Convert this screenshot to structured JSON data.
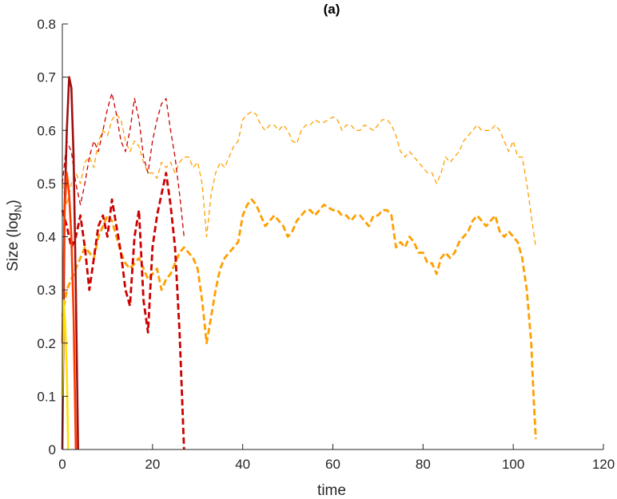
{
  "chart_data": {
    "type": "line",
    "title": "(a)",
    "xlabel": "time",
    "ylabel_main": "Size (log",
    "ylabel_sub": "N",
    "ylabel_close": ")",
    "xlim": [
      0,
      120
    ],
    "ylim": [
      0,
      0.8
    ],
    "xticks": [
      0,
      20,
      40,
      60,
      80,
      100,
      120
    ],
    "yticks": [
      0,
      0.1,
      0.2,
      0.3,
      0.4,
      0.5,
      0.6,
      0.7,
      0.8
    ],
    "xtick_labels": [
      "0",
      "20",
      "40",
      "60",
      "80",
      "100",
      "120"
    ],
    "ytick_labels": [
      "0",
      "0.1",
      "0.2",
      "0.3",
      "0.4",
      "0.5",
      "0.6",
      "0.7",
      "0.8"
    ],
    "grid": false,
    "legend": "none",
    "series": [
      {
        "color": "#ff9f00",
        "style": "dashed-thin",
        "x": [
          0,
          1,
          2,
          3,
          4,
          5,
          6,
          7,
          8,
          9,
          10,
          11,
          12,
          13,
          14,
          15,
          16,
          17,
          18,
          19,
          20,
          21,
          22,
          23,
          24,
          25,
          26,
          27,
          28,
          29,
          30,
          31,
          32,
          33,
          34,
          35,
          36,
          37,
          38,
          39,
          40,
          41,
          42,
          43,
          44,
          45,
          46,
          47,
          48,
          49,
          50,
          51,
          52,
          53,
          54,
          55,
          56,
          57,
          58,
          59,
          60,
          61,
          62,
          63,
          64,
          65,
          66,
          67,
          68,
          69,
          70,
          71,
          72,
          73,
          74,
          75,
          76,
          77,
          78,
          79,
          80,
          81,
          82,
          83,
          84,
          85,
          86,
          87,
          88,
          89,
          90,
          91,
          92,
          93,
          94,
          95,
          96,
          97,
          98,
          99,
          100,
          101,
          102,
          103,
          104,
          105
        ],
        "y": [
          0.5,
          0.46,
          0.5,
          0.52,
          0.5,
          0.54,
          0.55,
          0.53,
          0.58,
          0.6,
          0.59,
          0.62,
          0.63,
          0.62,
          0.58,
          0.56,
          0.58,
          0.57,
          0.54,
          0.52,
          0.52,
          0.51,
          0.54,
          0.53,
          0.54,
          0.52,
          0.54,
          0.55,
          0.55,
          0.53,
          0.54,
          0.5,
          0.4,
          0.48,
          0.52,
          0.54,
          0.53,
          0.55,
          0.57,
          0.58,
          0.62,
          0.63,
          0.635,
          0.63,
          0.61,
          0.6,
          0.61,
          0.61,
          0.6,
          0.61,
          0.6,
          0.58,
          0.575,
          0.6,
          0.61,
          0.61,
          0.62,
          0.615,
          0.615,
          0.62,
          0.625,
          0.62,
          0.6,
          0.61,
          0.61,
          0.6,
          0.6,
          0.61,
          0.605,
          0.6,
          0.61,
          0.62,
          0.62,
          0.61,
          0.59,
          0.56,
          0.55,
          0.56,
          0.55,
          0.54,
          0.53,
          0.52,
          0.52,
          0.5,
          0.52,
          0.55,
          0.54,
          0.55,
          0.56,
          0.58,
          0.59,
          0.6,
          0.61,
          0.6,
          0.6,
          0.6,
          0.61,
          0.6,
          0.58,
          0.56,
          0.58,
          0.55,
          0.55,
          0.5,
          0.44,
          0.38
        ]
      },
      {
        "color": "#ff9f00",
        "style": "dashed-thick",
        "x": [
          0,
          1,
          2,
          3,
          4,
          5,
          6,
          7,
          8,
          9,
          10,
          11,
          12,
          13,
          14,
          15,
          16,
          17,
          18,
          19,
          20,
          21,
          22,
          23,
          24,
          25,
          26,
          27,
          28,
          29,
          30,
          31,
          32,
          33,
          34,
          35,
          36,
          37,
          38,
          39,
          40,
          41,
          42,
          43,
          44,
          45,
          46,
          47,
          48,
          49,
          50,
          51,
          52,
          53,
          54,
          55,
          56,
          57,
          58,
          59,
          60,
          61,
          62,
          63,
          64,
          65,
          66,
          67,
          68,
          69,
          70,
          71,
          72,
          73,
          74,
          75,
          76,
          77,
          78,
          79,
          80,
          81,
          82,
          83,
          84,
          85,
          86,
          87,
          88,
          89,
          90,
          91,
          92,
          93,
          94,
          95,
          96,
          97,
          98,
          99,
          100,
          101,
          102,
          103,
          104,
          104.5,
          105
        ],
        "y": [
          0.25,
          0.3,
          0.32,
          0.34,
          0.36,
          0.38,
          0.37,
          0.36,
          0.4,
          0.42,
          0.44,
          0.43,
          0.4,
          0.37,
          0.35,
          0.34,
          0.35,
          0.36,
          0.34,
          0.32,
          0.33,
          0.34,
          0.3,
          0.32,
          0.33,
          0.35,
          0.37,
          0.38,
          0.37,
          0.36,
          0.34,
          0.28,
          0.2,
          0.25,
          0.3,
          0.34,
          0.36,
          0.37,
          0.38,
          0.39,
          0.44,
          0.46,
          0.47,
          0.46,
          0.44,
          0.42,
          0.43,
          0.44,
          0.43,
          0.42,
          0.4,
          0.41,
          0.43,
          0.44,
          0.45,
          0.45,
          0.44,
          0.45,
          0.46,
          0.455,
          0.45,
          0.45,
          0.44,
          0.44,
          0.43,
          0.44,
          0.44,
          0.43,
          0.42,
          0.44,
          0.44,
          0.45,
          0.45,
          0.44,
          0.38,
          0.39,
          0.38,
          0.4,
          0.39,
          0.37,
          0.37,
          0.35,
          0.35,
          0.33,
          0.36,
          0.37,
          0.36,
          0.37,
          0.39,
          0.4,
          0.41,
          0.43,
          0.44,
          0.43,
          0.42,
          0.43,
          0.44,
          0.41,
          0.4,
          0.41,
          0.4,
          0.39,
          0.36,
          0.3,
          0.2,
          0.1,
          0.02
        ]
      },
      {
        "color": "#cc0000",
        "style": "dashed-thin",
        "x": [
          0,
          1,
          2,
          3,
          4,
          5,
          6,
          7,
          8,
          9,
          10,
          11,
          12,
          13,
          14,
          15,
          16,
          17,
          18,
          19,
          20,
          21,
          22,
          23,
          24,
          25,
          26,
          27
        ],
        "y": [
          0.5,
          0.58,
          0.56,
          0.5,
          0.46,
          0.5,
          0.55,
          0.58,
          0.56,
          0.6,
          0.64,
          0.67,
          0.63,
          0.58,
          0.56,
          0.6,
          0.66,
          0.62,
          0.55,
          0.52,
          0.58,
          0.62,
          0.65,
          0.66,
          0.6,
          0.55,
          0.48,
          0.4
        ]
      },
      {
        "color": "#cc0000",
        "style": "dashed-thick",
        "x": [
          0,
          1,
          2,
          3,
          4,
          5,
          6,
          7,
          8,
          9,
          10,
          11,
          12,
          13,
          14,
          15,
          16,
          17,
          18,
          19,
          20,
          21,
          22,
          23,
          24,
          25,
          26,
          27
        ],
        "y": [
          0.45,
          0.42,
          0.38,
          0.4,
          0.44,
          0.38,
          0.3,
          0.36,
          0.42,
          0.44,
          0.4,
          0.47,
          0.42,
          0.37,
          0.3,
          0.27,
          0.4,
          0.45,
          0.28,
          0.22,
          0.38,
          0.44,
          0.48,
          0.52,
          0.46,
          0.38,
          0.22,
          0.0
        ]
      },
      {
        "color": "#a01010",
        "style": "solid",
        "x": [
          0,
          0.5,
          1,
          1.5,
          2,
          2.5,
          3,
          3.5
        ],
        "y": [
          0.0,
          0.45,
          0.6,
          0.7,
          0.68,
          0.55,
          0.3,
          0.0
        ]
      },
      {
        "color": "#ff3b00",
        "style": "solid",
        "x": [
          0,
          0.5,
          1,
          1.5,
          2,
          2.5,
          3
        ],
        "y": [
          0.2,
          0.45,
          0.52,
          0.48,
          0.4,
          0.25,
          0.0
        ]
      },
      {
        "color": "#ffe000",
        "style": "solid",
        "x": [
          0,
          0.3,
          0.6,
          1,
          1.3
        ],
        "y": [
          0.1,
          0.28,
          0.24,
          0.15,
          0.0
        ]
      }
    ]
  }
}
